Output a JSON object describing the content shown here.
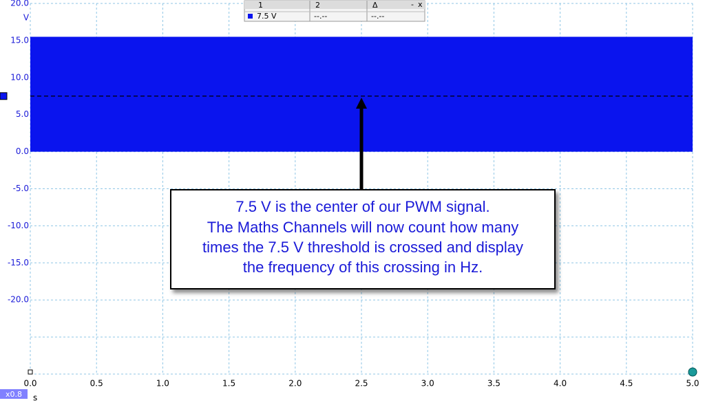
{
  "chart_data": {
    "type": "band",
    "x": [
      0,
      5
    ],
    "low": [
      0,
      0
    ],
    "high": [
      15.5,
      15.5
    ],
    "color": "#0a14ee",
    "threshold": 7.5,
    "xlim": [
      0,
      5
    ],
    "ylim": [
      -30,
      20
    ],
    "xticks": [
      {
        "value": 0,
        "label": "0.0"
      },
      0.5,
      {
        "value": 1,
        "label": "1.0"
      },
      1.5,
      {
        "value": 2,
        "label": "2.0"
      },
      2.5,
      {
        "value": 3,
        "label": "3.0"
      },
      3.5,
      {
        "value": 4,
        "label": "4.0"
      },
      4.5,
      {
        "value": 5,
        "label": "5.0"
      }
    ],
    "yticks": [
      {
        "value": 20,
        "label": "20.0"
      },
      {
        "value": 15,
        "label": "15.0"
      },
      {
        "value": 10,
        "label": "10.0"
      },
      {
        "value": 5,
        "label": "5.0"
      },
      {
        "value": 0,
        "label": "0.0"
      },
      {
        "value": -5,
        "label": "-5.0"
      },
      {
        "value": -10,
        "label": "-10.0"
      },
      {
        "value": -15,
        "label": "-15.0"
      },
      {
        "value": -20,
        "label": "-20.0"
      },
      {
        "value": -25,
        "label": null
      },
      {
        "value": -30,
        "label": null
      }
    ],
    "grid": true,
    "y_unit": "V",
    "x_unit": "s",
    "zoom": "x0.8",
    "annotation": [
      "7.5 V is the center of our PWM signal.",
      "The Maths Channels will now count how many",
      "times the 7.5 V threshold is crossed and display",
      "the frequency of this crossing in Hz."
    ],
    "measurements": {
      "headers": [
        "1",
        "2",
        "Δ"
      ],
      "buttons": [
        "-",
        "x"
      ],
      "rows": [
        [
          "7.5 V",
          "--.--",
          "--.--"
        ]
      ]
    }
  }
}
